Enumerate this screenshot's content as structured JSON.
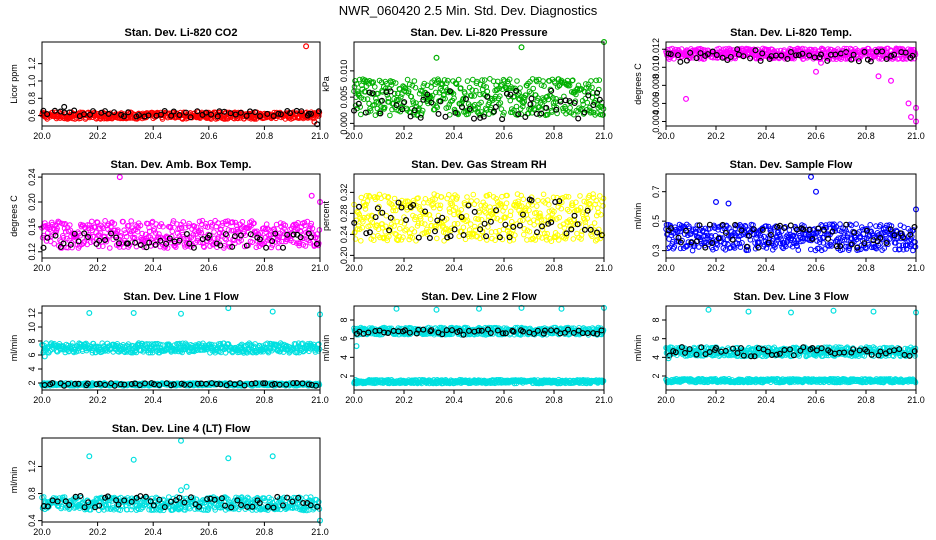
{
  "figure": {
    "title": "NWR_060420  2.5 Min. Std. Dev. Diagnostics"
  },
  "chart_data": [
    {
      "type": "scatter",
      "title": "Stan. Dev. Li-820 CO2",
      "xlabel": "",
      "ylabel": "Licor ppm",
      "xlim": [
        20.0,
        21.0
      ],
      "ylim": [
        0.48,
        1.45
      ],
      "xticks": [
        "20.0",
        "20.2",
        "20.4",
        "20.6",
        "20.8",
        "21.0"
      ],
      "yticks": [
        "0.6",
        "0.8",
        "1.0",
        "1.2"
      ],
      "bands": [
        {
          "color": "#ff0000",
          "base": 0.6,
          "spread": 0.04
        }
      ],
      "black": {
        "base": 0.62,
        "spread": 0.04
      },
      "series": [
        {
          "color": "#ff0000",
          "x": [
            20.95,
            20.98
          ],
          "y": [
            1.4,
            0.53
          ]
        },
        {
          "color": "#000000",
          "x": [
            20.08,
            20.96,
            20.99
          ],
          "y": [
            0.7,
            0.62,
            0.5
          ]
        }
      ]
    },
    {
      "type": "scatter",
      "title": "Stan. Dev. Li-820 Pressure",
      "xlabel": "",
      "ylabel": "kPa",
      "xlim": [
        20.0,
        21.0
      ],
      "ylim": [
        -0.0005,
        0.0155
      ],
      "xticks": [
        "20.0",
        "20.2",
        "20.4",
        "20.6",
        "20.8",
        "21.0"
      ],
      "yticks": [
        "0.000",
        "0.005",
        "0.010"
      ],
      "bands": [
        {
          "color": "#00b000",
          "base": 0.005,
          "spread": 0.0035
        }
      ],
      "black": {
        "base": 0.0035,
        "spread": 0.0028
      },
      "series": [
        {
          "color": "#00b000",
          "x": [
            20.33,
            20.67,
            21.0
          ],
          "y": [
            0.0125,
            0.0145,
            0.0155
          ]
        }
      ]
    },
    {
      "type": "scatter",
      "title": "Stan. Dev. Li-820 Temp.",
      "xlabel": "",
      "ylabel": "degrees C",
      "xlim": [
        20.0,
        21.0
      ],
      "ylim": [
        0.0035,
        0.0128
      ],
      "xticks": [
        "20.0",
        "20.2",
        "20.4",
        "20.6",
        "20.8",
        "21.0"
      ],
      "yticks": [
        "0.004",
        "0.006",
        "0.008",
        "0.010",
        "0.012"
      ],
      "bands": [
        {
          "color": "#ff00ff",
          "base": 0.0115,
          "spread": 0.0006
        }
      ],
      "black": {
        "base": 0.0113,
        "spread": 0.0007
      },
      "series": [
        {
          "color": "#ff00ff",
          "x": [
            20.08,
            20.6,
            20.62,
            20.72,
            20.85,
            20.9,
            20.97,
            20.98,
            21.0,
            21.0
          ],
          "y": [
            0.0065,
            0.0095,
            0.0105,
            0.0115,
            0.009,
            0.0085,
            0.006,
            0.0045,
            0.004,
            0.0055
          ]
        }
      ]
    },
    {
      "type": "scatter",
      "title": "Stan. Dev. Amb. Box Temp.",
      "xlabel": "",
      "ylabel": "degrees C",
      "xlim": [
        20.0,
        21.0
      ],
      "ylim": [
        0.11,
        0.245
      ],
      "xticks": [
        "20.0",
        "20.2",
        "20.4",
        "20.6",
        "20.8",
        "21.0"
      ],
      "yticks": [
        "0.12",
        "0.16",
        "0.20",
        "0.24"
      ],
      "bands": [
        {
          "color": "#ff00ff",
          "base": 0.148,
          "spread": 0.022
        }
      ],
      "black": {
        "base": 0.138,
        "spread": 0.012
      },
      "series": [
        {
          "color": "#ff00ff",
          "x": [
            20.28,
            20.97,
            21.0
          ],
          "y": [
            0.24,
            0.21,
            0.2
          ]
        }
      ]
    },
    {
      "type": "scatter",
      "title": "Stan. Dev. Gas Stream RH",
      "xlabel": "",
      "ylabel": "percent",
      "xlim": [
        20.0,
        21.0
      ],
      "ylim": [
        0.195,
        0.355
      ],
      "xticks": [
        "20.0",
        "20.2",
        "20.4",
        "20.6",
        "20.8",
        "21.0"
      ],
      "yticks": [
        "0.20",
        "0.24",
        "0.28",
        "0.32"
      ],
      "bands": [
        {
          "color": "#ffff00",
          "base": 0.272,
          "spread": 0.045
        }
      ],
      "black": {
        "base": 0.272,
        "spread": 0.04
      },
      "series": []
    },
    {
      "type": "scatter",
      "title": "Stan. Dev. Sample Flow",
      "xlabel": "",
      "ylabel": "ml/min",
      "xlim": [
        20.0,
        21.0
      ],
      "ylim": [
        0.25,
        0.82
      ],
      "xticks": [
        "20.0",
        "20.2",
        "20.4",
        "20.6",
        "20.8",
        "21.0"
      ],
      "yticks": [
        "0.3",
        "0.5",
        "0.7"
      ],
      "bands": [
        {
          "color": "#0000ff",
          "base": 0.39,
          "spread": 0.09
        }
      ],
      "black": {
        "base": 0.4,
        "spread": 0.08
      },
      "series": [
        {
          "color": "#0000ff",
          "x": [
            20.58,
            20.6,
            20.2,
            20.25,
            21.0
          ],
          "y": [
            0.8,
            0.7,
            0.63,
            0.62,
            0.58
          ]
        }
      ]
    },
    {
      "type": "scatter",
      "title": "Stan. Dev. Line 1 Flow",
      "xlabel": "",
      "ylabel": "ml/min",
      "xlim": [
        20.0,
        21.0
      ],
      "ylim": [
        1.0,
        13.0
      ],
      "xticks": [
        "20.0",
        "20.2",
        "20.4",
        "20.6",
        "20.8",
        "21.0"
      ],
      "yticks": [
        "2",
        "4",
        "6",
        "8",
        "10",
        "12"
      ],
      "bands": [
        {
          "color": "#00e0e0",
          "base": 7.0,
          "spread": 0.7
        },
        {
          "color": "#00e0e0",
          "base": 1.8,
          "spread": 0.2
        }
      ],
      "black": {
        "base": 1.8,
        "spread": 0.2
      },
      "series": [
        {
          "color": "#00e0e0",
          "x": [
            20.17,
            20.33,
            20.5,
            20.67,
            20.83,
            21.0,
            20.01
          ],
          "y": [
            12.0,
            12.0,
            11.9,
            12.7,
            12.2,
            11.8,
            5.8
          ]
        }
      ]
    },
    {
      "type": "scatter",
      "title": "Stan. Dev. Line 2 Flow",
      "xlabel": "",
      "ylabel": "ml/min",
      "xlim": [
        20.0,
        21.0
      ],
      "ylim": [
        0.5,
        9.5
      ],
      "xticks": [
        "20.0",
        "20.2",
        "20.4",
        "20.6",
        "20.8",
        "21.0"
      ],
      "yticks": [
        "2",
        "4",
        "6",
        "8"
      ],
      "bands": [
        {
          "color": "#00e0e0",
          "base": 6.8,
          "spread": 0.4
        },
        {
          "color": "#00e0e0",
          "base": 1.4,
          "spread": 0.2
        }
      ],
      "black": {
        "base": 6.7,
        "spread": 0.3
      },
      "series": [
        {
          "color": "#00e0e0",
          "x": [
            20.17,
            20.33,
            20.5,
            20.67,
            20.83,
            21.0,
            20.01
          ],
          "y": [
            9.2,
            9.1,
            9.2,
            9.3,
            9.2,
            9.3,
            5.2
          ]
        }
      ]
    },
    {
      "type": "scatter",
      "title": "Stan. Dev. Line 3 Flow",
      "xlabel": "",
      "ylabel": "ml/min",
      "xlim": [
        20.0,
        21.0
      ],
      "ylim": [
        0.5,
        9.5
      ],
      "xticks": [
        "20.0",
        "20.2",
        "20.4",
        "20.6",
        "20.8",
        "21.0"
      ],
      "yticks": [
        "2",
        "4",
        "6",
        "8"
      ],
      "bands": [
        {
          "color": "#00e0e0",
          "base": 4.6,
          "spread": 0.5
        },
        {
          "color": "#00e0e0",
          "base": 1.5,
          "spread": 0.2
        }
      ],
      "black": {
        "base": 4.6,
        "spread": 0.5
      },
      "series": [
        {
          "color": "#00e0e0",
          "x": [
            20.17,
            20.33,
            20.5,
            20.67,
            20.83,
            21.0,
            20.01
          ],
          "y": [
            9.1,
            8.9,
            8.8,
            9.0,
            8.9,
            8.8,
            3.9
          ]
        }
      ]
    },
    {
      "type": "scatter",
      "title": "Stan. Dev. Line 4 (LT) Flow",
      "xlabel": "",
      "ylabel": "ml/min",
      "xlim": [
        20.0,
        21.0
      ],
      "ylim": [
        0.38,
        1.62
      ],
      "xticks": [
        "20.0",
        "20.2",
        "20.4",
        "20.6",
        "20.8",
        "21.0"
      ],
      "yticks": [
        "0.4",
        "0.8",
        "1.2"
      ],
      "bands": [
        {
          "color": "#00e0e0",
          "base": 0.65,
          "spread": 0.1
        }
      ],
      "black": {
        "base": 0.68,
        "spread": 0.09
      },
      "series": [
        {
          "color": "#00e0e0",
          "x": [
            20.17,
            20.33,
            20.5,
            20.67,
            20.83,
            21.0,
            20.5,
            20.52
          ],
          "y": [
            1.35,
            1.3,
            1.58,
            1.32,
            1.35,
            0.4,
            0.85,
            0.9
          ]
        }
      ]
    }
  ]
}
